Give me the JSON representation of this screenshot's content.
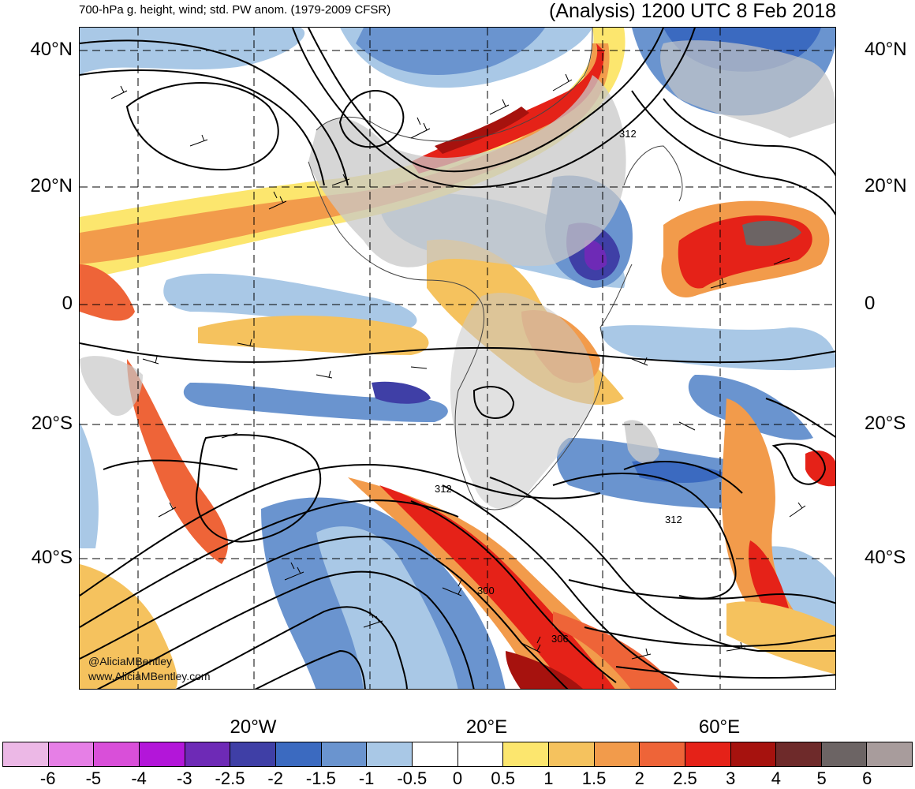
{
  "header": {
    "left_title": "700-hPa g. height, wind; std. PW anom. (1979-2009 CFSR)",
    "right_title": "(Analysis) 1200 UTC 8 Feb 2018"
  },
  "lat_labels": [
    "40°N",
    "20°N",
    "0",
    "20°S",
    "40°S"
  ],
  "lon_labels": [
    "20°W",
    "20°E",
    "60°E"
  ],
  "contour_labels": [
    "312",
    "312",
    "312",
    "300",
    "306"
  ],
  "credit": {
    "twitter": "@AliciaMBentley",
    "website": "www.AliciaMBentley.com"
  },
  "colorbar": {
    "labels": [
      "-6",
      "-5",
      "-4",
      "-3",
      "-2.5",
      "-2",
      "-1.5",
      "-1",
      "-0.5",
      "0",
      "0.5",
      "1",
      "1.5",
      "2",
      "2.5",
      "3",
      "4",
      "5",
      "6"
    ],
    "colors": [
      "#ecb8e6",
      "#e67fe6",
      "#d94fd9",
      "#b316d9",
      "#6e2ab6",
      "#3f3fa6",
      "#3b6ac0",
      "#6a94cf",
      "#a9c8e6",
      "#ffffff",
      "#ffffff",
      "#fce66e",
      "#f5c25e",
      "#f29b4b",
      "#ee6438",
      "#e52218",
      "#a6120e",
      "#6e2a2a",
      "#6c6464",
      "#a89c9c"
    ],
    "land_color": "#c8c8c8"
  }
}
